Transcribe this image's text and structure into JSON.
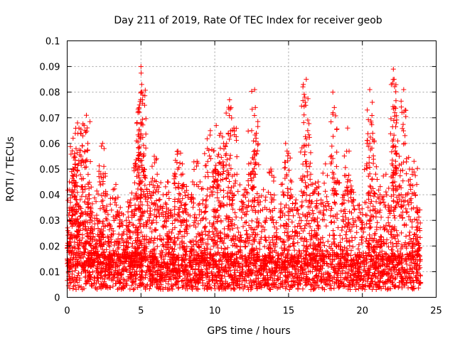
{
  "chart_data": {
    "type": "scatter",
    "title": "Day 211 of 2019, Rate Of TEC Index for receiver geob",
    "xlabel": "GPS time / hours",
    "ylabel": "ROTI / TECUs",
    "xlim": [
      0,
      25
    ],
    "ylim": [
      0,
      0.1
    ],
    "xticks": [
      "0",
      "5",
      "10",
      "15",
      "20",
      "25"
    ],
    "yticks": [
      "0",
      "0.01",
      "0.02",
      "0.03",
      "0.04",
      "0.05",
      "0.06",
      "0.07",
      "0.08",
      "0.09",
      "0.1"
    ],
    "grid": true,
    "marker": "+",
    "color": "#ff0000",
    "series": [
      {
        "values_note_omitted": null,
        "points": [
          [
            0.05,
            0.026
          ],
          [
            0.15,
            0.045
          ],
          [
            0.3,
            0.049
          ],
          [
            0.4,
            0.062
          ],
          [
            0.5,
            0.055
          ],
          [
            0.6,
            0.058
          ],
          [
            0.7,
            0.068
          ],
          [
            0.8,
            0.066
          ],
          [
            0.9,
            0.064
          ],
          [
            1.0,
            0.043
          ],
          [
            1.2,
            0.065
          ],
          [
            1.3,
            0.071
          ],
          [
            1.4,
            0.06
          ],
          [
            1.5,
            0.04
          ],
          [
            1.7,
            0.033
          ],
          [
            2.0,
            0.032
          ],
          [
            2.2,
            0.045
          ],
          [
            2.4,
            0.06
          ],
          [
            2.5,
            0.058
          ],
          [
            2.7,
            0.04
          ],
          [
            3.0,
            0.034
          ],
          [
            3.3,
            0.044
          ],
          [
            3.6,
            0.035
          ],
          [
            4.0,
            0.03
          ],
          [
            4.3,
            0.038
          ],
          [
            4.6,
            0.052
          ],
          [
            4.7,
            0.061
          ],
          [
            4.8,
            0.072
          ],
          [
            4.85,
            0.058
          ],
          [
            4.9,
            0.075
          ],
          [
            5.0,
            0.09
          ],
          [
            5.05,
            0.083
          ],
          [
            5.1,
            0.077
          ],
          [
            5.2,
            0.05
          ],
          [
            5.4,
            0.042
          ],
          [
            5.7,
            0.045
          ],
          [
            5.9,
            0.055
          ],
          [
            6.1,
            0.048
          ],
          [
            6.5,
            0.04
          ],
          [
            6.8,
            0.045
          ],
          [
            7.0,
            0.033
          ],
          [
            7.3,
            0.048
          ],
          [
            7.5,
            0.057
          ],
          [
            7.8,
            0.052
          ],
          [
            7.9,
            0.044
          ],
          [
            8.2,
            0.04
          ],
          [
            8.5,
            0.045
          ],
          [
            8.8,
            0.053
          ],
          [
            9.0,
            0.045
          ],
          [
            9.2,
            0.038
          ],
          [
            9.5,
            0.058
          ],
          [
            9.7,
            0.065
          ],
          [
            10.0,
            0.05
          ],
          [
            10.1,
            0.067
          ],
          [
            10.2,
            0.055
          ],
          [
            10.4,
            0.064
          ],
          [
            10.6,
            0.06
          ],
          [
            10.8,
            0.06
          ],
          [
            11.0,
            0.077
          ],
          [
            11.1,
            0.074
          ],
          [
            11.3,
            0.066
          ],
          [
            11.5,
            0.048
          ],
          [
            12.0,
            0.042
          ],
          [
            12.3,
            0.052
          ],
          [
            12.5,
            0.065
          ],
          [
            12.7,
            0.081
          ],
          [
            12.75,
            0.074
          ],
          [
            12.8,
            0.062
          ],
          [
            13.3,
            0.042
          ],
          [
            13.8,
            0.05
          ],
          [
            14.0,
            0.038
          ],
          [
            14.5,
            0.044
          ],
          [
            14.8,
            0.06
          ],
          [
            14.9,
            0.057
          ],
          [
            15.2,
            0.045
          ],
          [
            15.5,
            0.038
          ],
          [
            16.0,
            0.083
          ],
          [
            16.1,
            0.078
          ],
          [
            16.2,
            0.085
          ],
          [
            16.3,
            0.065
          ],
          [
            16.5,
            0.048
          ],
          [
            16.8,
            0.042
          ],
          [
            17.0,
            0.045
          ],
          [
            17.2,
            0.038
          ],
          [
            17.5,
            0.052
          ],
          [
            18.0,
            0.08
          ],
          [
            18.1,
            0.074
          ],
          [
            18.3,
            0.045
          ],
          [
            18.7,
            0.04
          ],
          [
            19.0,
            0.066
          ],
          [
            19.1,
            0.057
          ],
          [
            19.3,
            0.042
          ],
          [
            19.8,
            0.036
          ],
          [
            20.3,
            0.052
          ],
          [
            20.5,
            0.081
          ],
          [
            20.6,
            0.068
          ],
          [
            20.7,
            0.064
          ],
          [
            21.0,
            0.046
          ],
          [
            21.2,
            0.04
          ],
          [
            21.6,
            0.048
          ],
          [
            22.0,
            0.052
          ],
          [
            22.1,
            0.089
          ],
          [
            22.15,
            0.085
          ],
          [
            22.2,
            0.072
          ],
          [
            22.3,
            0.068
          ],
          [
            22.5,
            0.055
          ],
          [
            22.8,
            0.081
          ],
          [
            22.9,
            0.073
          ],
          [
            23.2,
            0.05
          ],
          [
            23.5,
            0.053
          ],
          [
            23.7,
            0.035
          ],
          [
            23.9,
            0.026
          ]
        ]
      }
    ]
  }
}
